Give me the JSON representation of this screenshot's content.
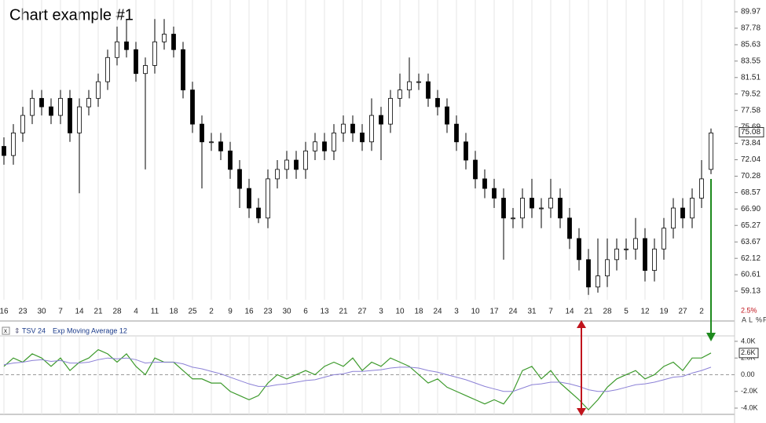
{
  "chart_data": [
    {
      "type": "candlestick",
      "title": "Chart example #1",
      "categories": [
        "16",
        null,
        "23",
        null,
        "30",
        null,
        "7",
        null,
        "14",
        null,
        "21",
        null,
        "28",
        null,
        "4",
        null,
        "11",
        null,
        "18",
        null,
        "25",
        null,
        "2",
        null,
        "9",
        null,
        "16",
        null,
        "23",
        null,
        "30",
        null,
        "6",
        null,
        "13",
        null,
        "21",
        null,
        "27",
        null,
        "3",
        null,
        "10",
        null,
        "18",
        null,
        "24",
        null,
        "3",
        null,
        "10",
        null,
        "17",
        null,
        "24",
        null,
        "31",
        null,
        "7",
        null,
        "14",
        null,
        "21",
        null,
        "28",
        null,
        "5",
        null,
        "12",
        null,
        "19",
        null,
        "27",
        null,
        "2",
        null
      ],
      "open": [
        73.5,
        72.5,
        75,
        77,
        79,
        78,
        77,
        79,
        75,
        78,
        79,
        81,
        84,
        86,
        85,
        82,
        83,
        86,
        87,
        85,
        80,
        76,
        74,
        74,
        73,
        71,
        69,
        67,
        66,
        70,
        71,
        72,
        71,
        73,
        74,
        73,
        75,
        76,
        75,
        74,
        77,
        76,
        79,
        80,
        81,
        81,
        79,
        78,
        76,
        74,
        72,
        70,
        69,
        68,
        66,
        66,
        68,
        67,
        67,
        68,
        66,
        64,
        62,
        59.5,
        60.5,
        62,
        63,
        63,
        64,
        61,
        63,
        65,
        67,
        66,
        68,
        71
      ],
      "high": [
        74.5,
        76,
        78,
        80,
        80,
        79,
        80,
        80,
        79,
        80,
        82,
        85,
        88,
        89,
        86,
        84,
        89,
        89,
        88,
        86,
        81,
        77,
        75,
        75,
        74,
        72,
        70,
        68,
        71,
        72,
        73,
        73,
        74,
        75,
        75,
        76,
        77,
        77,
        76,
        79,
        78,
        80,
        82,
        84,
        82,
        82,
        80,
        79,
        77,
        75,
        73,
        71,
        70,
        69,
        67,
        69,
        70,
        68,
        70,
        69,
        67,
        65,
        63,
        64,
        64,
        64,
        64,
        66,
        65,
        64,
        66,
        68,
        68,
        69,
        72,
        75.5
      ],
      "low": [
        71.5,
        71.5,
        74,
        76,
        77,
        76,
        76,
        74,
        68.5,
        77,
        78,
        80,
        83,
        84,
        81,
        71,
        82,
        85,
        84,
        79,
        75,
        69,
        73,
        72,
        70,
        67,
        66,
        65.5,
        65,
        69,
        70,
        70,
        70,
        72,
        72,
        72,
        74,
        74,
        73,
        73,
        72,
        75,
        78,
        79,
        80,
        78,
        77,
        75,
        73,
        71,
        69,
        68,
        67,
        62,
        65,
        65,
        66,
        65,
        66,
        65,
        63,
        61,
        58.8,
        59,
        59.5,
        61,
        62,
        62,
        60,
        60,
        62,
        64,
        65,
        65,
        67,
        70.5
      ],
      "close": [
        72.5,
        75,
        77,
        79,
        78,
        77,
        79,
        75,
        78,
        79,
        81,
        84,
        86,
        85,
        82,
        83,
        86,
        87,
        85,
        80,
        76,
        74,
        74,
        73,
        71,
        69,
        67,
        66,
        70,
        71,
        72,
        71,
        73,
        74,
        73,
        75,
        76,
        75,
        74,
        77,
        76,
        79,
        80,
        81,
        81,
        79,
        78,
        76,
        74,
        72,
        70,
        69,
        68,
        66,
        66,
        68,
        67,
        67,
        68,
        66,
        64,
        62,
        59.5,
        60.5,
        62,
        63,
        63,
        64,
        61,
        63,
        65,
        67,
        66,
        68,
        70,
        75
      ],
      "up_color": "#ffffff",
      "down_color": "#000000",
      "log_scale": true,
      "ylim": [
        58.37,
        90.72
      ],
      "yticks": [
        59.13,
        60.61,
        62.12,
        63.67,
        65.27,
        {
          "value": 66.9,
          "label": "66.90"
        },
        68.57,
        70.28,
        72.04,
        73.84,
        75.69,
        77.58,
        79.52,
        81.51,
        83.55,
        85.63,
        87.78,
        89.97
      ],
      "last_value": 75.08,
      "change_label": "2.5%",
      "controls": [
        "A",
        "L",
        "%",
        "F"
      ],
      "grid": true
    },
    {
      "type": "line",
      "series": [
        {
          "name": "TSV 24",
          "color": "#3d9a2c",
          "values": [
            1000,
            2000,
            1500,
            2500,
            2000,
            1000,
            2000,
            500,
            1500,
            2000,
            3000,
            2500,
            1500,
            2500,
            1000,
            0,
            2000,
            1500,
            1500,
            500,
            -500,
            -500,
            -1000,
            -1000,
            -2000,
            -2500,
            -3000,
            -2500,
            -1000,
            0,
            -500,
            0,
            500,
            0,
            1000,
            1500,
            1000,
            2000,
            500,
            1500,
            1000,
            2000,
            1500,
            1000,
            0,
            -1000,
            -500,
            -1500,
            -2000,
            -2500,
            -3000,
            -3500,
            -3000,
            -3500,
            -2000,
            500,
            1000,
            -500,
            500,
            -1000,
            -2000,
            -3000,
            -4200,
            -3000,
            -1500,
            -500,
            0,
            500,
            -500,
            0,
            1000,
            1500,
            500,
            2000,
            2000,
            2600
          ]
        },
        {
          "name": "Exp Moving Average 12",
          "color": "#8b80d6",
          "values": [
            1200,
            1400,
            1500,
            1700,
            1800,
            1600,
            1700,
            1400,
            1400,
            1500,
            1800,
            2000,
            1900,
            2000,
            1800,
            1400,
            1500,
            1500,
            1500,
            1300,
            900,
            700,
            400,
            100,
            -300,
            -700,
            -1100,
            -1400,
            -1400,
            -1200,
            -1100,
            -900,
            -700,
            -600,
            -300,
            0,
            100,
            400,
            400,
            500,
            600,
            800,
            900,
            900,
            800,
            500,
            300,
            0,
            -300,
            -600,
            -1000,
            -1400,
            -1700,
            -2000,
            -2000,
            -1600,
            -1200,
            -1100,
            -900,
            -900,
            -1100,
            -1400,
            -1800,
            -2000,
            -2000,
            -1800,
            -1500,
            -1200,
            -1100,
            -900,
            -600,
            -300,
            -200,
            200,
            500,
            900
          ]
        }
      ],
      "ylim": [
        -4750,
        4650
      ],
      "yticks": [
        {
          "value": 4000,
          "label": "4.0K"
        },
        {
          "value": 2000,
          "label": "2.0K"
        },
        {
          "value": 0,
          "label": "0.00"
        },
        {
          "value": -2000,
          "label": "-2.0K"
        },
        {
          "value": -4000,
          "label": "-4.0K"
        }
      ],
      "last_value": {
        "value": 2600,
        "label": "2.6K"
      }
    }
  ]
}
